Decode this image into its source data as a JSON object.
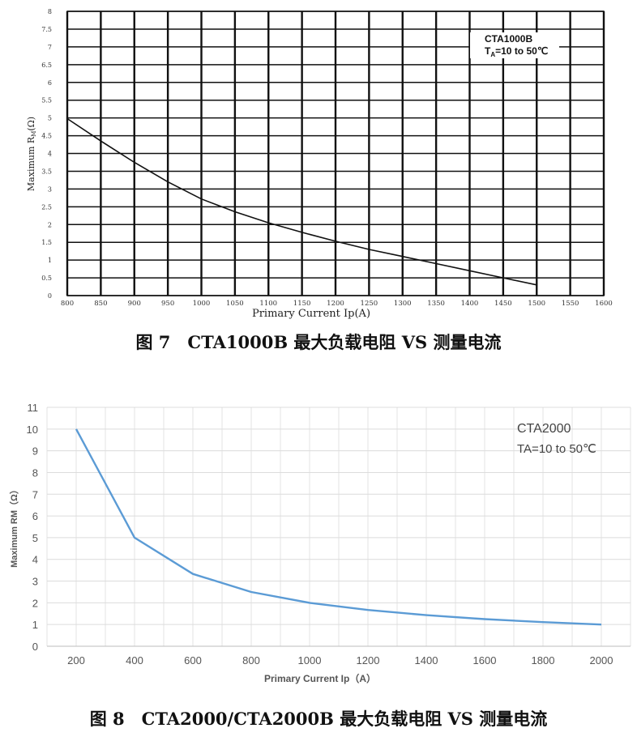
{
  "figures": {
    "fig7_caption": "图 7　CTA1000B 最大负载电阻 VS 测量电流",
    "fig8_caption": "图 8　CTA2000/CTA2000B 最大负载电阻 VS 测量电流"
  },
  "chart_data": [
    {
      "type": "line",
      "title": "",
      "annotation_line1": "CTA1000B",
      "annotation_line2_prefix": "T",
      "annotation_line2_sub": "A",
      "annotation_line2_rest": "=10 to 50℃",
      "xlabel": "Primary Current Ip(A)",
      "ylabel": "Maximum R",
      "ylabel_sub": "M",
      "ylabel_suffix": "(Ω)",
      "xlim": [
        800,
        1600
      ],
      "ylim": [
        0,
        8
      ],
      "x_ticks": [
        800,
        850,
        900,
        950,
        1000,
        1050,
        1100,
        1150,
        1200,
        1250,
        1300,
        1350,
        1400,
        1450,
        1500,
        1550,
        1600
      ],
      "y_ticks": [
        0,
        0.5,
        1,
        1.5,
        2,
        2.5,
        3,
        3.5,
        4,
        4.5,
        5,
        5.5,
        6,
        6.5,
        7,
        7.5,
        8
      ],
      "grid": true,
      "color": "#111111",
      "x": [
        800,
        850,
        900,
        950,
        1000,
        1050,
        1100,
        1150,
        1200,
        1250,
        1300,
        1350,
        1400,
        1450,
        1500
      ],
      "y": [
        4.98,
        4.35,
        3.75,
        3.2,
        2.72,
        2.36,
        2.05,
        1.78,
        1.53,
        1.3,
        1.1,
        0.9,
        0.7,
        0.5,
        0.3
      ]
    },
    {
      "type": "line",
      "title": "",
      "annotation_line1": "CTA2000",
      "annotation_line2": "TA=10 to 50℃",
      "xlabel": "Primary Current Ip（A）",
      "ylabel": "Maximum RM（Ω）",
      "xlim": [
        100,
        2100
      ],
      "ylim": [
        0,
        11
      ],
      "x_ticks": [
        200,
        400,
        600,
        800,
        1000,
        1200,
        1400,
        1600,
        1800,
        2000
      ],
      "y_ticks": [
        0,
        1,
        2,
        3,
        4,
        5,
        6,
        7,
        8,
        9,
        10,
        11
      ],
      "grid": true,
      "color": "#5b9bd5",
      "x": [
        200,
        400,
        600,
        800,
        1000,
        1200,
        1400,
        1600,
        1800,
        2000
      ],
      "y": [
        10,
        5,
        3.33,
        2.5,
        2,
        1.67,
        1.43,
        1.25,
        1.11,
        1
      ]
    }
  ]
}
